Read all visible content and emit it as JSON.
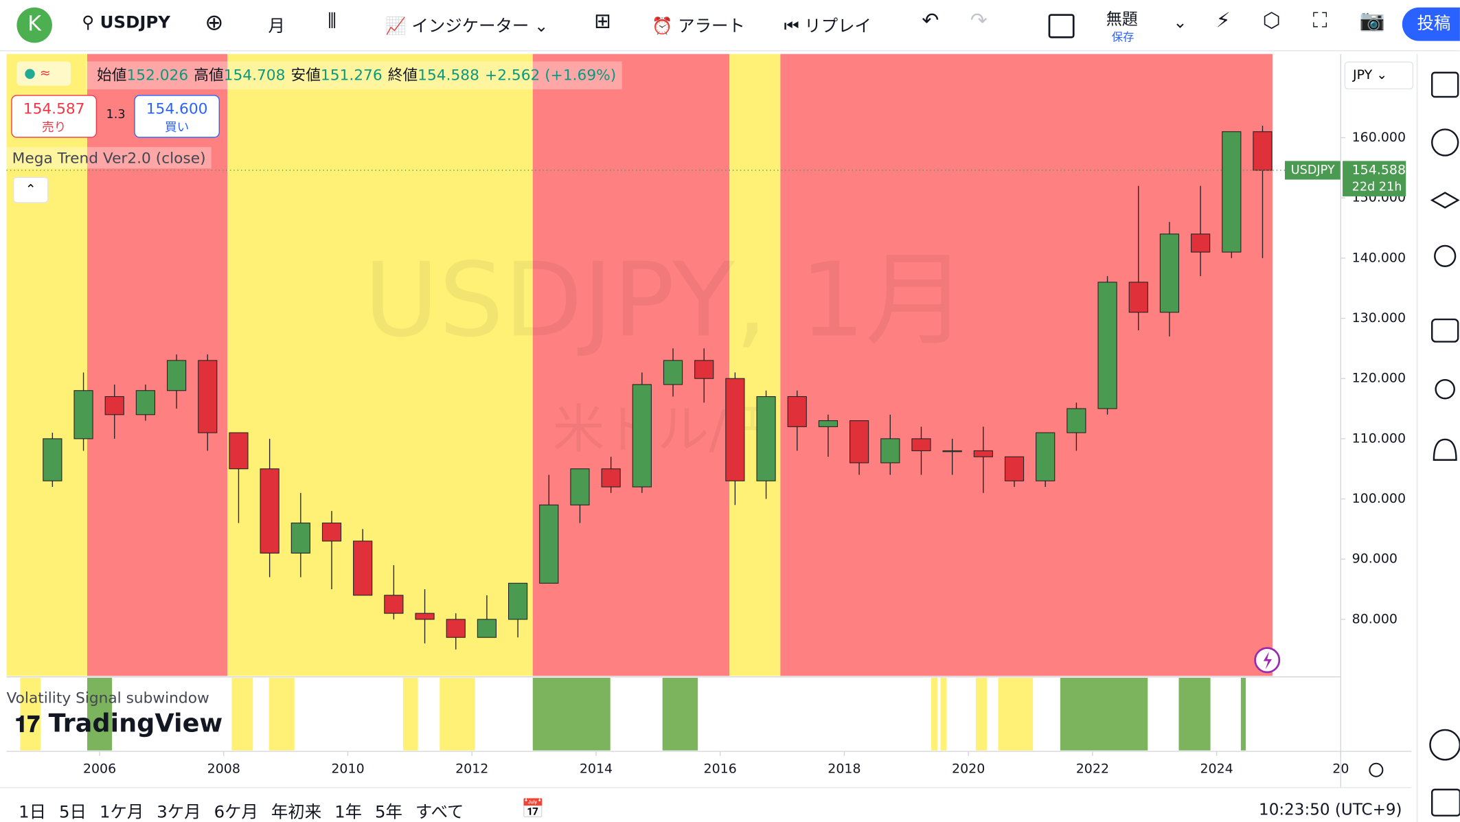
{
  "toolbar": {
    "avatar": "K",
    "symbol": "USDJPY",
    "interval": "月",
    "indicators": "インジケーター",
    "alert": "アラート",
    "replay": "リプレイ",
    "layout_name": "無題",
    "save": "保存",
    "publish": "投稿"
  },
  "legend": {
    "items": [
      {
        "label": "始値",
        "value": "152.026"
      },
      {
        "label": "高値",
        "value": "154.708"
      },
      {
        "label": "安値",
        "value": "151.276"
      },
      {
        "label": "終値",
        "value": "154.588"
      }
    ],
    "change": "+2.562 (+1.69%)",
    "sell_price": "154.587",
    "sell": "売り",
    "spread": "1.3",
    "buy_price": "154.600",
    "buy": "買い",
    "indicator": "Mega Trend Ver2.0 (close)"
  },
  "watermark": {
    "title": "USDJPY, 1月",
    "subtitle": "米ドル/円"
  },
  "chart_data": {
    "type": "candlestick",
    "currency": "JPY",
    "xlim": [
      2004.5,
      2026.0
    ],
    "ylim": [
      70.6,
      173.9
    ],
    "yticks": [
      {
        "value": 80,
        "label": "80.000"
      },
      {
        "value": 90,
        "label": "90.000"
      },
      {
        "value": 100,
        "label": "100.000"
      },
      {
        "value": 110,
        "label": "110.000"
      },
      {
        "value": 120,
        "label": "120.000"
      },
      {
        "value": 130,
        "label": "130.000"
      },
      {
        "value": 140,
        "label": "140.000"
      },
      {
        "value": 150,
        "label": "150.000"
      },
      {
        "value": 160,
        "label": "160.000"
      }
    ],
    "xticks": [
      2006,
      2008,
      2010,
      2012,
      2014,
      2016,
      2018,
      2020,
      2022,
      2024,
      {
        "value": 2026,
        "label": "20"
      }
    ],
    "up_color": "#4a9a52",
    "down_color": "#e0303a",
    "x": [
      2005.0,
      2005.5,
      2006.0,
      2006.5,
      2007.0,
      2007.5,
      2008.0,
      2008.5,
      2009.0,
      2009.5,
      2010.0,
      2010.5,
      2011.0,
      2011.5,
      2012.0,
      2012.5,
      2013.0,
      2013.5,
      2014.0,
      2014.5,
      2015.0,
      2015.5,
      2016.0,
      2016.5,
      2017.0,
      2017.5,
      2018.0,
      2018.5,
      2019.0,
      2019.5,
      2020.0,
      2020.5,
      2021.0,
      2021.5,
      2022.0,
      2022.5,
      2023.0,
      2023.5,
      2024.0,
      2024.5
    ],
    "open": [
      103,
      110,
      117,
      114,
      118,
      123,
      111,
      105,
      91,
      96,
      93,
      84,
      81,
      80,
      77,
      80,
      86,
      99,
      105,
      102,
      119,
      123,
      120,
      103,
      117,
      112,
      113,
      106,
      110,
      108,
      108,
      107,
      103,
      111,
      115,
      136,
      131,
      144,
      141,
      161
    ],
    "high": [
      111,
      121,
      119,
      119,
      124,
      124,
      111,
      110,
      101,
      98,
      95,
      89,
      85,
      81,
      84,
      86,
      104,
      105,
      107,
      121,
      125,
      125,
      121,
      118,
      118,
      114,
      113,
      114,
      112,
      110,
      112,
      107,
      111,
      116,
      137,
      152,
      146,
      152,
      161,
      162
    ],
    "low": [
      102,
      108,
      110,
      113,
      115,
      108,
      96,
      87,
      87,
      85,
      84,
      80,
      76,
      75,
      77,
      77,
      86,
      96,
      101,
      101,
      117,
      116,
      99,
      100,
      108,
      107,
      104,
      104,
      104,
      104,
      101,
      102,
      102,
      108,
      114,
      128,
      127,
      137,
      140,
      140
    ],
    "close": [
      110,
      118,
      114,
      118,
      123,
      111,
      105,
      91,
      96,
      93,
      84,
      81,
      80,
      77,
      80,
      86,
      99,
      105,
      102,
      119,
      123,
      120,
      103,
      117,
      112,
      113,
      106,
      110,
      108,
      108,
      107,
      103,
      111,
      115,
      136,
      131,
      144,
      141,
      161,
      154.588
    ],
    "last_price": {
      "symbol": "USDJPY",
      "value": 154.588,
      "label": "154.588",
      "countdown": "22d 21h"
    },
    "trend_bands": [
      {
        "start": 2004.5,
        "end": 2005.8,
        "color": "#fff176"
      },
      {
        "start": 2005.8,
        "end": 2008.06,
        "color": "#ff8080"
      },
      {
        "start": 2008.06,
        "end": 2012.98,
        "color": "#fff176"
      },
      {
        "start": 2012.98,
        "end": 2016.15,
        "color": "#ff8080"
      },
      {
        "start": 2016.15,
        "end": 2016.97,
        "color": "#fff176"
      },
      {
        "start": 2016.97,
        "end": 2024.9,
        "color": "#ff8080"
      }
    ],
    "subwindow": {
      "title": "Volatility Signal subwindow",
      "bands": [
        {
          "start": 2004.72,
          "end": 2005.05,
          "color": "#fff176"
        },
        {
          "start": 2005.8,
          "end": 2006.2,
          "color": "#7cb45e"
        },
        {
          "start": 2008.13,
          "end": 2008.47,
          "color": "#fff176"
        },
        {
          "start": 2008.73,
          "end": 2009.14,
          "color": "#fff176"
        },
        {
          "start": 2010.89,
          "end": 2011.13,
          "color": "#fff176"
        },
        {
          "start": 2011.48,
          "end": 2012.05,
          "color": "#fff176"
        },
        {
          "start": 2012.98,
          "end": 2014.23,
          "color": "#7cb45e"
        },
        {
          "start": 2015.07,
          "end": 2015.64,
          "color": "#7cb45e"
        },
        {
          "start": 2019.4,
          "end": 2019.5,
          "color": "#fff176"
        },
        {
          "start": 2019.55,
          "end": 2019.65,
          "color": "#fff176"
        },
        {
          "start": 2020.12,
          "end": 2020.3,
          "color": "#fff176"
        },
        {
          "start": 2020.48,
          "end": 2021.04,
          "color": "#fff176"
        },
        {
          "start": 2021.48,
          "end": 2022.89,
          "color": "#7cb45e"
        },
        {
          "start": 2023.39,
          "end": 2023.9,
          "color": "#7cb45e"
        },
        {
          "start": 2024.39,
          "end": 2024.47,
          "color": "#7cb45e"
        }
      ]
    }
  },
  "brand": "TradingView",
  "bottom": {
    "ranges": [
      "1日",
      "5日",
      "1ケ月",
      "3ケ月",
      "6ケ月",
      "年初来",
      "1年",
      "5年",
      "すべて"
    ],
    "time": "10:23:50 (UTC+9)"
  }
}
